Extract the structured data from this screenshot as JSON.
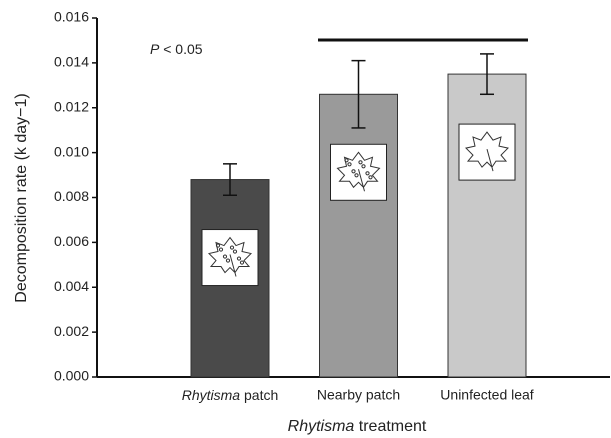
{
  "chart_data": {
    "type": "bar",
    "y_label": "Decomposition rate (k day−1)",
    "x_label": "Rhytisma treatment",
    "annotation": "P < 0.05",
    "categories": [
      "Rhytisma patch",
      "Nearby patch",
      "Uninfected leaf"
    ],
    "values": [
      0.0088,
      0.0126,
      0.0135
    ],
    "errors": [
      0.0007,
      0.0015,
      0.0009
    ],
    "colors": [
      "#4a4a4a",
      "#9a9a9a",
      "#c9c9c9"
    ],
    "ylim": [
      0,
      0.016
    ],
    "yticks": [
      {
        "value": 0,
        "label": "0.000"
      },
      {
        "value": 0.002,
        "label": "0.002"
      },
      {
        "value": 0.004,
        "label": "0.004"
      },
      {
        "value": 0.006,
        "label": "0.006"
      },
      {
        "value": 0.008,
        "label": "0.008"
      },
      {
        "value": 0.01,
        "label": "0.010"
      },
      {
        "value": 0.012,
        "label": "0.012"
      },
      {
        "value": 0.014,
        "label": "0.014"
      },
      {
        "value": 0.016,
        "label": "0.016"
      }
    ]
  }
}
